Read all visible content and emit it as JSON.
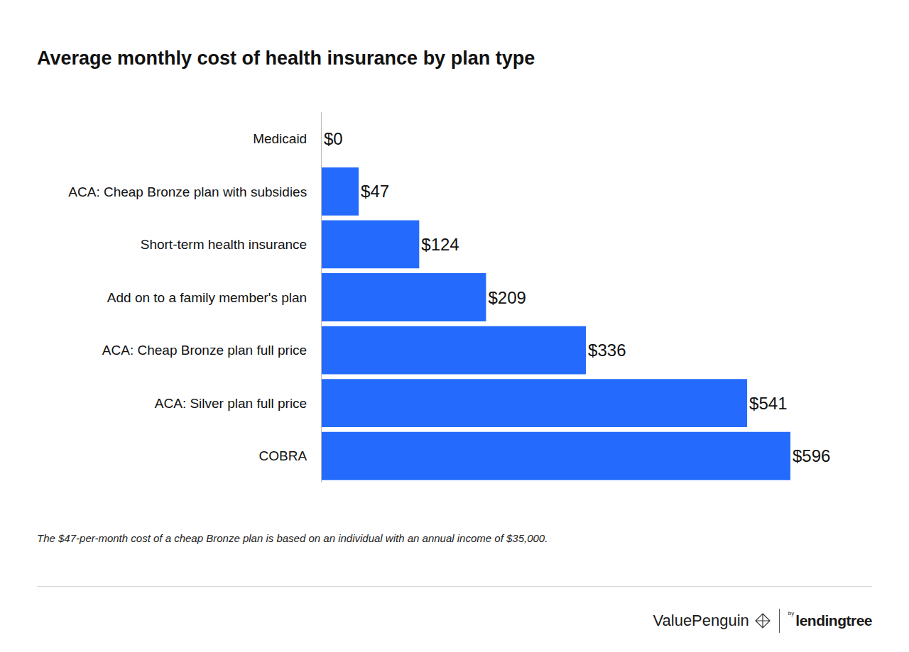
{
  "chart_data": {
    "type": "bar",
    "orientation": "horizontal",
    "title": "Average monthly cost of health insurance by plan type",
    "categories": [
      "Medicaid",
      "ACA: Cheap Bronze plan with subsidies",
      "Short-term health insurance",
      "Add on to a family member's plan",
      "ACA: Cheap Bronze plan full price",
      "ACA: Silver plan full price",
      "COBRA"
    ],
    "values": [
      0,
      47,
      124,
      209,
      336,
      541,
      596
    ],
    "value_labels": [
      "$0",
      "$47",
      "$124",
      "$209",
      "$336",
      "$541",
      "$596"
    ],
    "data_labels": true,
    "color": "#246bfd",
    "xlim": [
      0,
      596
    ],
    "grid": false,
    "tick_labels": "y",
    "footnote": "The $47-per-month cost of a cheap Bronze plan is based on an individual with an annual income of $35,000.",
    "source": "ValuePenguin",
    "source_by": "by",
    "source_brand": "lendingtree"
  }
}
